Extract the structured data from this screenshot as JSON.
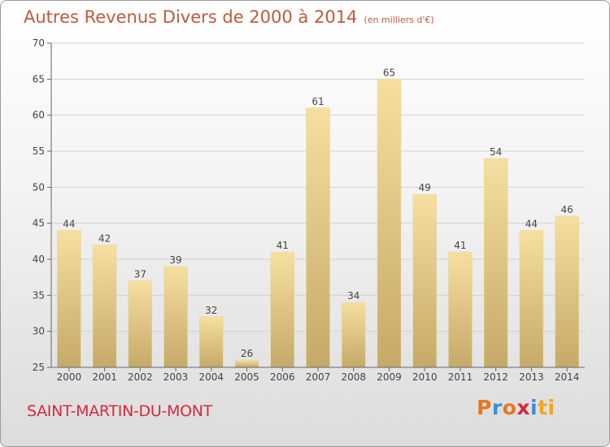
{
  "header": {
    "title": "Autres Revenus Divers de 2000 à 2014",
    "subtitle": "(en milliers d'€)"
  },
  "footer": {
    "commune": "SAINT-MARTIN-DU-MONT",
    "logo_letters": [
      "P",
      "r",
      "o",
      "x",
      "i",
      "ti"
    ]
  },
  "colors": {
    "bar_light": "#f6dfa0",
    "bar_dark": "#c5a968",
    "title": "#bf5a3c",
    "commune": "#d6293f"
  },
  "chart_data": {
    "type": "bar",
    "title": "Autres Revenus Divers de 2000 à 2014",
    "subtitle": "(en milliers d'€)",
    "categories": [
      "2000",
      "2001",
      "2002",
      "2003",
      "2004",
      "2005",
      "2006",
      "2007",
      "2008",
      "2009",
      "2010",
      "2011",
      "2012",
      "2013",
      "2014"
    ],
    "values": [
      44,
      42,
      37,
      39,
      32,
      26,
      41,
      61,
      34,
      65,
      49,
      41,
      54,
      44,
      46
    ],
    "ylim": [
      25,
      70
    ],
    "yticks": [
      25,
      30,
      35,
      40,
      45,
      50,
      55,
      60,
      65,
      70
    ],
    "grid": true,
    "data_labels": true
  }
}
